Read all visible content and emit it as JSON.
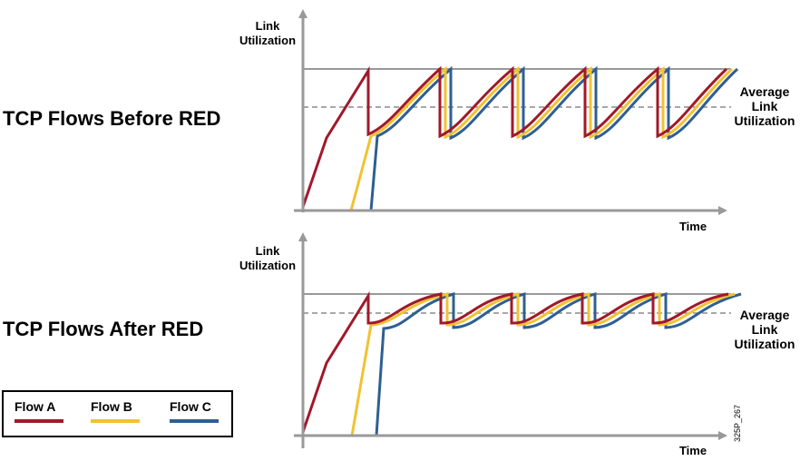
{
  "colors": {
    "flow_a": "#a0192a",
    "flow_b": "#f2c233",
    "flow_c": "#2f5f91",
    "axis": "#999999",
    "capacity": "#999999",
    "average": "#8c8c8c"
  },
  "top": {
    "title": "TCP Flows Before RED",
    "y_label_line1": "Link",
    "y_label_line2": "Utilization",
    "x_label": "Time",
    "avg_line1": "Average",
    "avg_line2": "Link",
    "avg_line3": "Utilization"
  },
  "bottom": {
    "title": "TCP Flows After RED",
    "y_label_line1": "Link",
    "y_label_line2": "Utilization",
    "x_label": "Time",
    "avg_line1": "Average",
    "avg_line2": "Link",
    "avg_line3": "Utilization"
  },
  "legend": {
    "flow_a": "Flow A",
    "flow_b": "Flow B",
    "flow_c": "Flow C"
  },
  "figure_id": "325P_267"
}
